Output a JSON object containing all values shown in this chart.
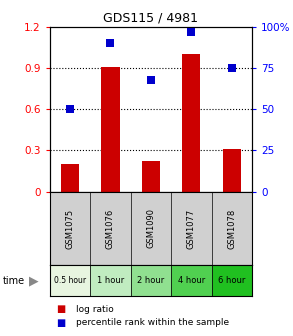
{
  "title": "GDS115 / 4981",
  "samples": [
    "GSM1075",
    "GSM1076",
    "GSM1090",
    "GSM1077",
    "GSM1078"
  ],
  "time_labels": [
    "0.5 hour",
    "1 hour",
    "2 hour",
    "4 hour",
    "6 hour"
  ],
  "log_ratio": [
    0.2,
    0.91,
    0.22,
    1.0,
    0.31
  ],
  "percentile": [
    50,
    90,
    68,
    97,
    75
  ],
  "bar_color": "#cc0000",
  "dot_color": "#0000cc",
  "ylim_left": [
    0,
    1.2
  ],
  "ylim_right": [
    0,
    100
  ],
  "yticks_left": [
    0,
    0.3,
    0.6,
    0.9,
    1.2
  ],
  "yticks_right": [
    0,
    25,
    50,
    75,
    100
  ],
  "time_colors": [
    "#e8f5e0",
    "#c0ecc0",
    "#90e090",
    "#50d050",
    "#20c020"
  ],
  "bar_width": 0.45,
  "background_color": "#ffffff",
  "sample_bg": "#d0d0d0",
  "dot_size": 35
}
